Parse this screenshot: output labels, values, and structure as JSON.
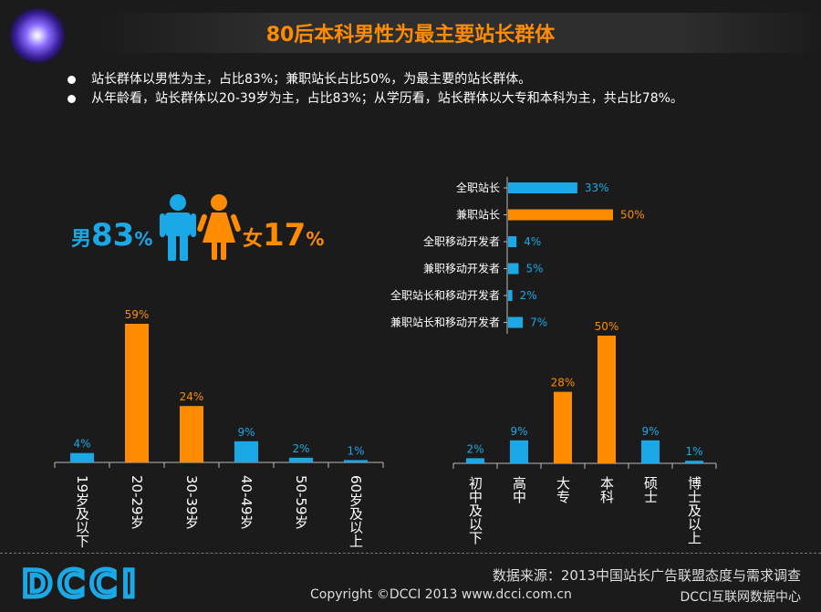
{
  "header": {
    "title": "80后本科男性为最主要站长群体"
  },
  "bullets": [
    "站长群体以男性为主，占比83%；兼职站长占比50%，为最主要的站长群体。",
    "从年龄看，站长群体以20-39岁为主，占比83%；从学历看，站长群体以大专和本科为主，共占比78%。"
  ],
  "gender": {
    "male_label": "男",
    "male_value": "83",
    "female_label": "女",
    "female_value": "17",
    "percent_sign": "%",
    "male_color": "#1ba8e6",
    "female_color": "#ff8c00"
  },
  "footer": {
    "logo": "DCCI",
    "source": "数据来源：2013中国站长广告联盟态度与需求调查",
    "copyright": "Copyright ©DCCI 2013 www.dcci.com.cn",
    "center": "DCCI互联网数据中心"
  },
  "colors": {
    "blue": "#1ba8e6",
    "orange": "#ff8c00",
    "axis": "#bbbbbb"
  },
  "chart_data": [
    {
      "type": "bar",
      "orientation": "horizontal",
      "categories": [
        "全职站长",
        "兼职站长",
        "全职移动开发者",
        "兼职移动开发者",
        "全职站长和移动开发者",
        "兼职站长和移动开发者"
      ],
      "values": [
        33,
        50,
        4,
        5,
        2,
        7
      ],
      "labels": [
        "33%",
        "50%",
        "4%",
        "5%",
        "2%",
        "7%"
      ],
      "highlight": [
        1
      ],
      "xlim": [
        0,
        50
      ]
    },
    {
      "type": "bar",
      "categories": [
        "19岁及以下",
        "20-29岁",
        "30-39岁",
        "40-49岁",
        "50-59岁",
        "60岁及以上"
      ],
      "values": [
        4,
        59,
        24,
        9,
        2,
        1
      ],
      "labels": [
        "4%",
        "59%",
        "24%",
        "9%",
        "2%",
        "1%"
      ],
      "highlight": [
        1,
        2
      ],
      "ylim": [
        0,
        59
      ]
    },
    {
      "type": "bar",
      "categories": [
        "初中及以下",
        "高中",
        "大专",
        "本科",
        "硕士",
        "博士及以上"
      ],
      "values": [
        2,
        9,
        28,
        50,
        9,
        1
      ],
      "labels": [
        "2%",
        "9%",
        "28%",
        "50%",
        "9%",
        "1%"
      ],
      "highlight": [
        2,
        3
      ],
      "ylim": [
        0,
        50
      ]
    }
  ]
}
